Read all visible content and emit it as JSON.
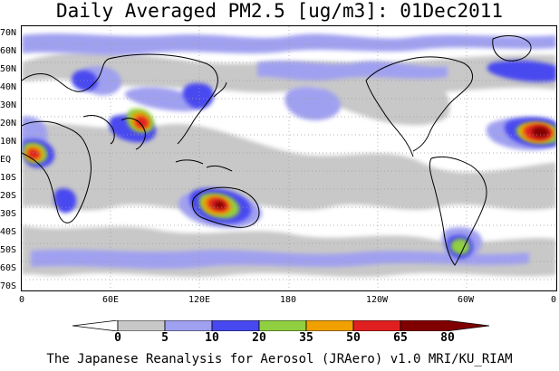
{
  "title": "Daily Averaged PM2.5 [ug/m3]: 01Dec2011",
  "footer": "The Japanese Reanalysis for Aerosol (JRAero) v1.0 MRI/KU_RIAM",
  "lat_labels": [
    "70N",
    "60N",
    "50N",
    "40N",
    "30N",
    "20N",
    "10N",
    "EQ",
    "10S",
    "20S",
    "30S",
    "40S",
    "50S",
    "60S",
    "70S"
  ],
  "lon_labels": [
    "0",
    "60E",
    "120E",
    "180",
    "120W",
    "60W",
    "0"
  ],
  "colorbar": {
    "labels": [
      "0",
      "5",
      "10",
      "20",
      "35",
      "50",
      "65",
      "80"
    ],
    "colors": [
      "#ffffff",
      "#c8c8c8",
      "#a0a0f0",
      "#4848f0",
      "#90d040",
      "#f0a000",
      "#e02020",
      "#800000"
    ]
  }
}
